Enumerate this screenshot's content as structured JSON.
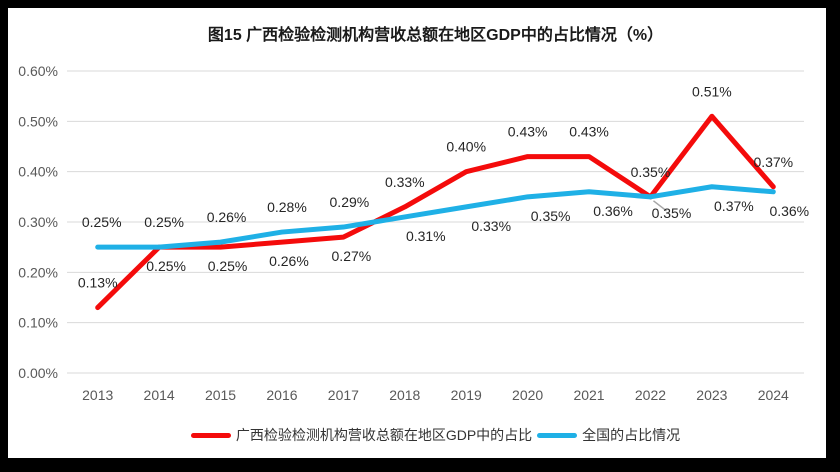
{
  "chart_data": {
    "type": "line",
    "title": "图15 广西检验检测机构营收总额在地区GDP中的占比情况（%）",
    "categories": [
      "2013",
      "2014",
      "2015",
      "2016",
      "2017",
      "2018",
      "2019",
      "2020",
      "2021",
      "2022",
      "2023",
      "2024"
    ],
    "series": [
      {
        "name": "广西检验检测机构营收总额在地区GDP中的占比",
        "color": "#F40B0B",
        "values": [
          0.13,
          0.25,
          0.25,
          0.26,
          0.27,
          0.33,
          0.4,
          0.43,
          0.43,
          0.35,
          0.51,
          0.37
        ],
        "labels": [
          "0.13%",
          "0.25%",
          "0.25%",
          "0.26%",
          "0.27%",
          "0.33%",
          "0.40%",
          "0.43%",
          "0.43%",
          "0.35%",
          "0.51%",
          "0.37%"
        ]
      },
      {
        "name": "全国的占比情况",
        "color": "#1FB0E6",
        "values": [
          0.25,
          0.25,
          0.26,
          0.28,
          0.29,
          0.31,
          0.33,
          0.35,
          0.36,
          0.35,
          0.37,
          0.36
        ],
        "labels": [
          "0.25%",
          "0.25%",
          "0.26%",
          "0.28%",
          "0.29%",
          "0.31%",
          "0.33%",
          "0.35%",
          "0.36%",
          "0.35%",
          "0.37%",
          "0.36%"
        ]
      }
    ],
    "ylim": [
      0,
      0.6
    ],
    "yticks": [
      "0.00%",
      "0.10%",
      "0.20%",
      "0.30%",
      "0.40%",
      "0.50%",
      "0.60%"
    ],
    "xlabel": "",
    "ylabel": "",
    "grid": "horizontal",
    "legend_position": "bottom"
  },
  "style_colors": {
    "frame_border": "#000000",
    "gridline": "#D9D9D9",
    "axis_text": "#595959",
    "data_label_text": "#262626",
    "leader_line": "#A6A6A6",
    "background": "#FFFFFF"
  }
}
